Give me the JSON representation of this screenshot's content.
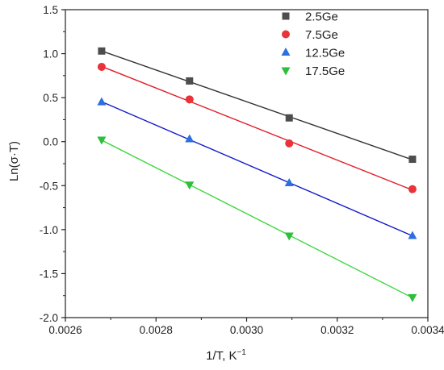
{
  "chart_data": {
    "type": "scatter",
    "xlabel": "1/T, K",
    "xlabel_sup": "−1",
    "ylabel": "Ln(σ·T)",
    "xlim": [
      0.0026,
      0.0034
    ],
    "ylim": [
      -2.0,
      1.5
    ],
    "xticks": [
      0.0026,
      0.0028,
      0.003,
      0.0032,
      0.0034
    ],
    "xtick_labels": [
      "0.0026",
      "0.0028",
      "0.0030",
      "0.0032",
      "0.0034"
    ],
    "yticks": [
      -2.0,
      -1.5,
      -1.0,
      -0.5,
      0.0,
      0.5,
      1.0,
      1.5
    ],
    "ytick_labels": [
      "-2.0",
      "-1.5",
      "-1.0",
      "-0.5",
      "0.0",
      "0.5",
      "1.0",
      "1.5"
    ],
    "grid": false,
    "legend_position": "top-right",
    "x": [
      0.00268,
      0.002874,
      0.003094,
      0.003366
    ],
    "series": [
      {
        "name": "2.5Ge",
        "marker": "square",
        "color": "#4d4d4d",
        "line_color": "#333333",
        "values": [
          1.03,
          0.69,
          0.27,
          -0.2
        ]
      },
      {
        "name": "7.5Ge",
        "marker": "circle",
        "color": "#e8333a",
        "line_color": "#e0202a",
        "values": [
          0.85,
          0.48,
          -0.02,
          -0.54
        ]
      },
      {
        "name": "12.5Ge",
        "marker": "triangle-up",
        "color": "#2b6fe0",
        "line_color": "#1018cc",
        "values": [
          0.45,
          0.03,
          -0.47,
          -1.07
        ]
      },
      {
        "name": "17.5Ge",
        "marker": "triangle-down",
        "color": "#2bbf3a",
        "line_color": "#3cd63c",
        "values": [
          0.02,
          -0.49,
          -1.07,
          -1.77
        ]
      }
    ]
  }
}
